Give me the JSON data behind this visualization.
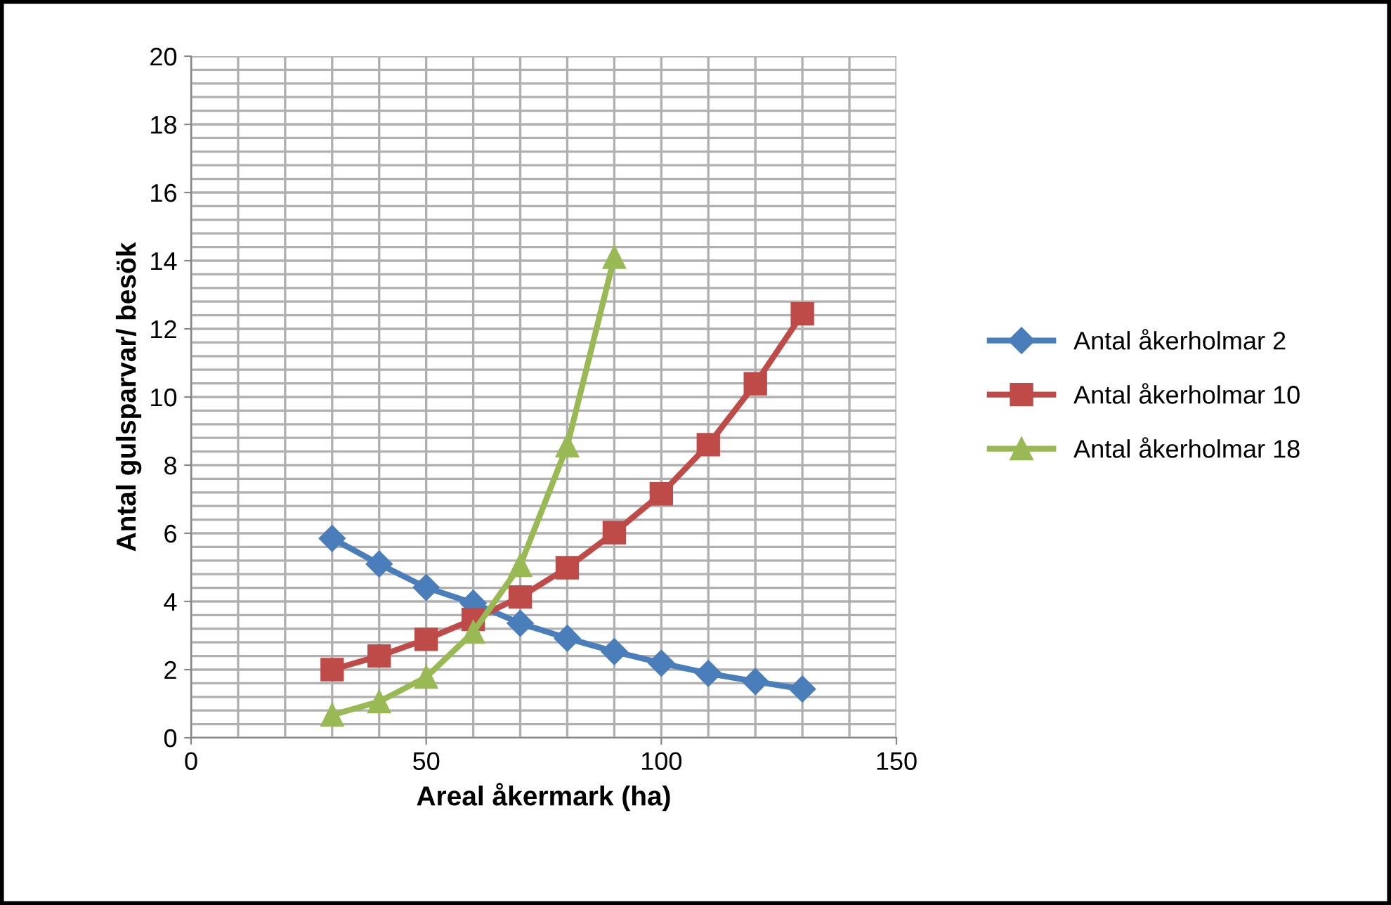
{
  "chart_data": {
    "type": "line",
    "xlabel": "Areal åkermark (ha)",
    "ylabel": "Antal gulsparvar/ besök",
    "x": [
      30,
      40,
      50,
      60,
      70,
      80,
      90,
      100,
      110,
      120,
      130
    ],
    "series": [
      {
        "name": "Antal åkerholmar 2",
        "color": "#4a7ebb",
        "marker": "diamond",
        "values": [
          5.85,
          5.1,
          4.41,
          3.95,
          3.36,
          2.92,
          2.53,
          2.19,
          1.89,
          1.65,
          1.43
        ]
      },
      {
        "name": "Antal åkerholmar 10",
        "color": "#be4b48",
        "marker": "square",
        "values": [
          2.0,
          2.4,
          2.89,
          3.47,
          4.13,
          4.99,
          6.02,
          7.16,
          8.6,
          10.39,
          12.44
        ]
      },
      {
        "name": "Antal åkerholmar 18",
        "color": "#98b954",
        "marker": "triangle",
        "values": [
          0.67,
          1.06,
          1.78,
          3.1,
          5.06,
          8.57,
          14.1,
          null,
          null,
          null,
          null
        ]
      }
    ],
    "xlim": [
      0,
      150
    ],
    "xticks": [
      0,
      50,
      100,
      150
    ],
    "ylim": [
      0,
      20
    ],
    "yticks": [
      0,
      2,
      4,
      6,
      8,
      10,
      12,
      14,
      16,
      18,
      20
    ],
    "grid": true,
    "legend": "right",
    "line_style": "solid"
  }
}
